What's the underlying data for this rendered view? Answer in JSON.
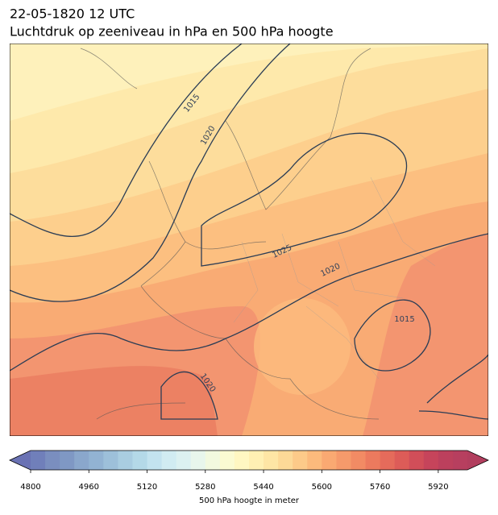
{
  "header": {
    "date": "22-05-1820 12 UTC",
    "title": "Luchtdruk op zeeniveau in hPa en 500 hPa hoogte"
  },
  "contour_labels": [
    1015,
    1020,
    1025,
    1020,
    1015,
    1020
  ],
  "colorbar": {
    "label": "500 hPa hoogte in meter",
    "lim": [
      4800,
      6000
    ],
    "ticks": [
      4800,
      4960,
      5120,
      5280,
      5440,
      5600,
      5760,
      5920
    ],
    "colors": [
      "#707fba",
      "#7a8ebf",
      "#7f98c4",
      "#8aa7cc",
      "#92b3d3",
      "#9dc0da",
      "#a9cde1",
      "#b4d9e8",
      "#c3e3ef",
      "#d1ecf2",
      "#dcf1f1",
      "#e8f6ec",
      "#f2f9df",
      "#fbfbd2",
      "#fff7c2",
      "#fff0b3",
      "#fee6a5",
      "#fdd997",
      "#fdca89",
      "#fcba7c",
      "#faa972",
      "#f69a6b",
      "#f28b64",
      "#ec7a5e",
      "#e56b5b",
      "#dd5c58",
      "#d14e59",
      "#c6445b",
      "#bc405d",
      "#b73f5f"
    ],
    "under_color": "#6a72b4",
    "over_color": "#b23e5e"
  }
}
